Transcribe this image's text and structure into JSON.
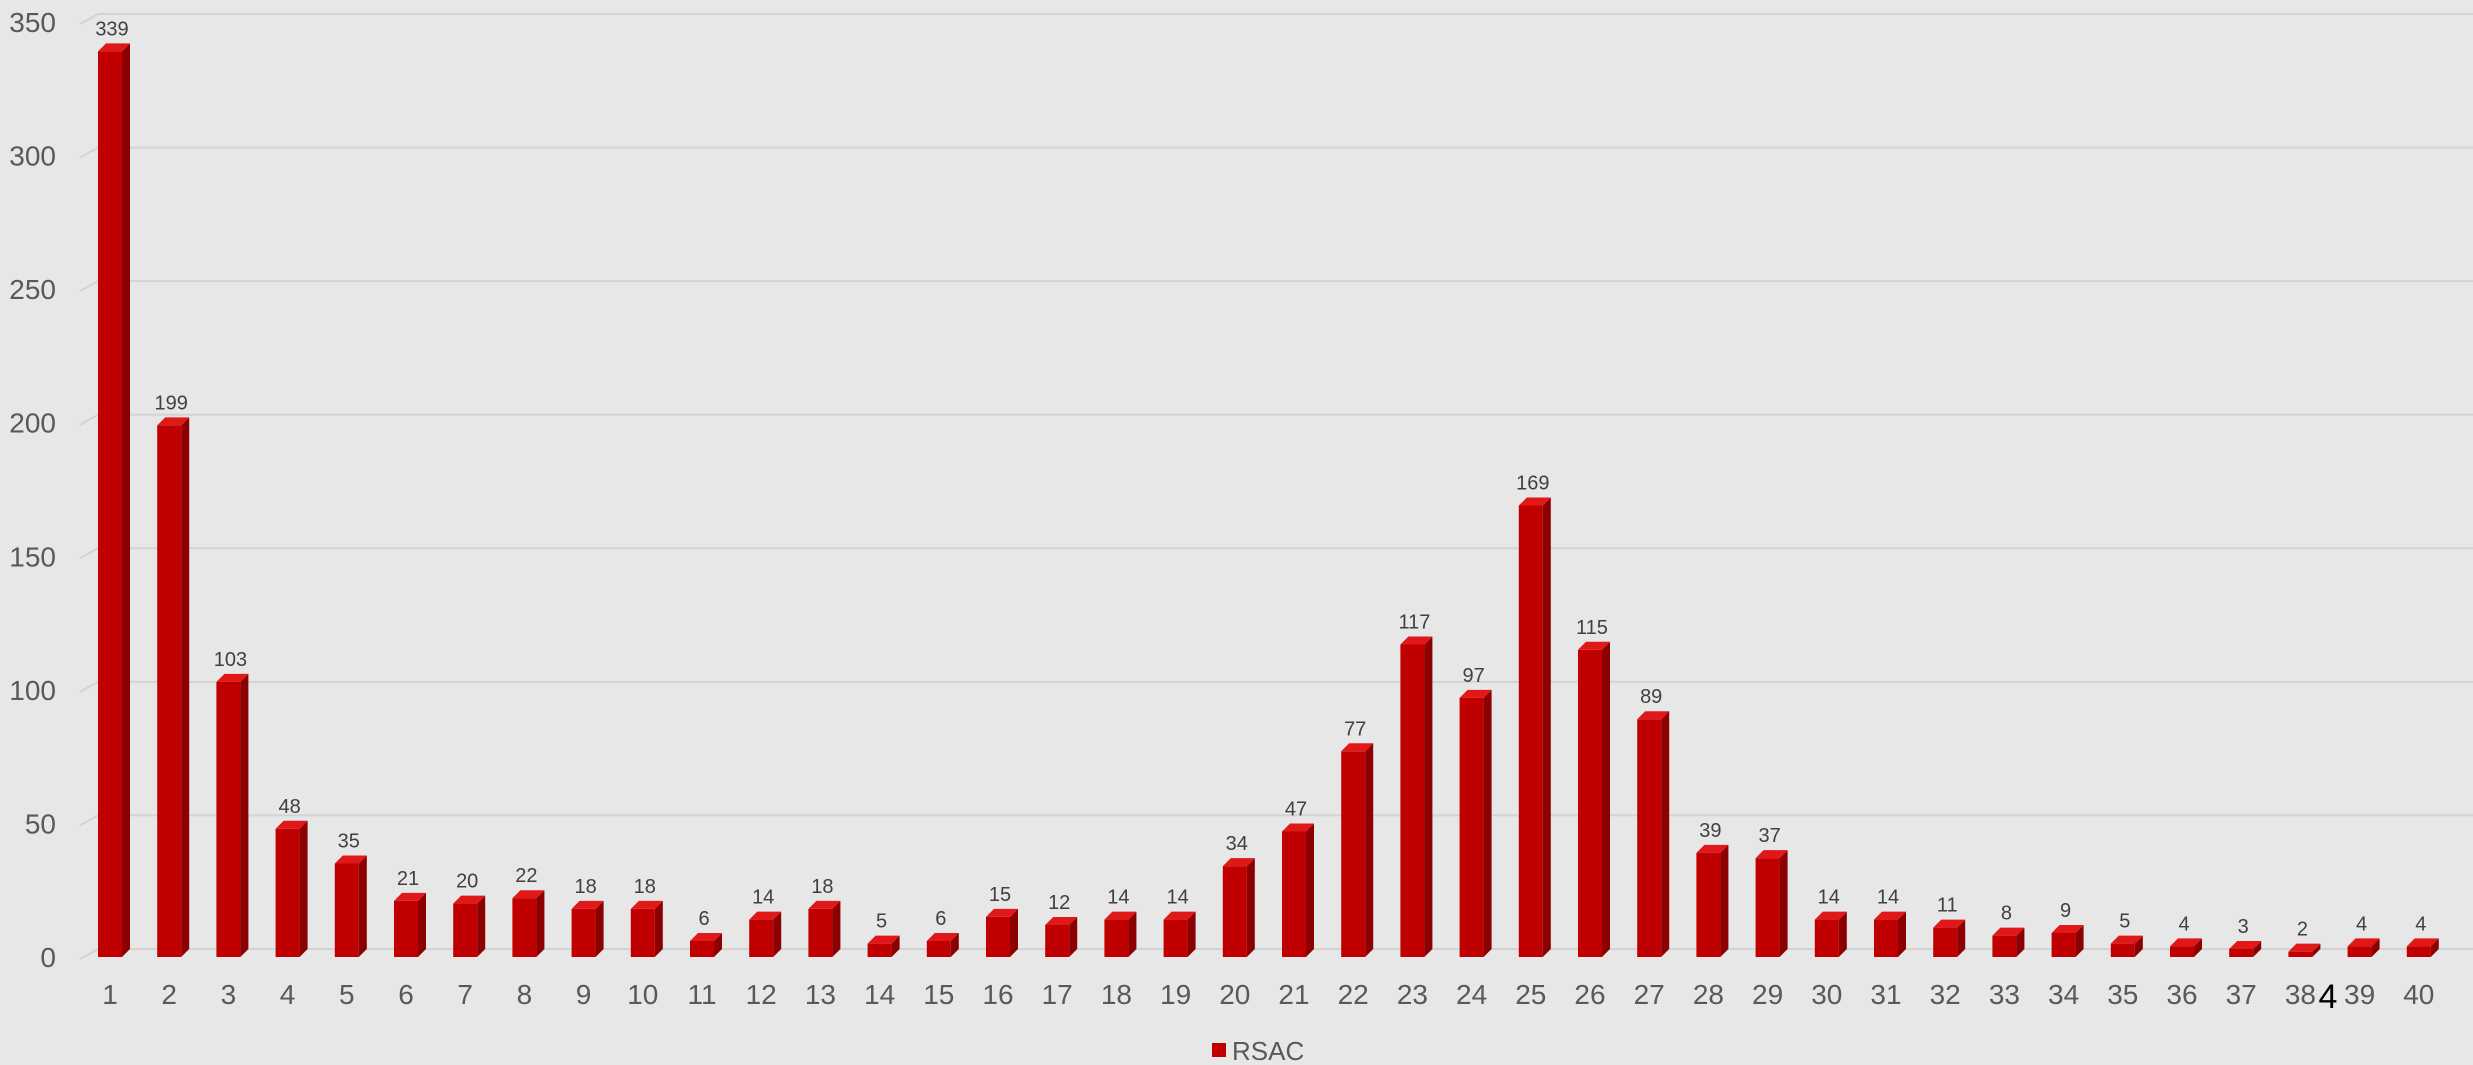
{
  "chart_data": {
    "type": "bar",
    "style": "3d-column",
    "categories": [
      "1",
      "2",
      "3",
      "4",
      "5",
      "6",
      "7",
      "8",
      "9",
      "10",
      "11",
      "12",
      "13",
      "14",
      "15",
      "16",
      "17",
      "18",
      "19",
      "20",
      "21",
      "22",
      "23",
      "24",
      "25",
      "26",
      "27",
      "28",
      "29",
      "30",
      "31",
      "32",
      "33",
      "34",
      "35",
      "36",
      "37",
      "38",
      "39",
      "40"
    ],
    "series": [
      {
        "name": "RSAC",
        "color": "#c00000",
        "values": [
          339,
          199,
          103,
          48,
          35,
          21,
          20,
          22,
          18,
          18,
          6,
          14,
          18,
          5,
          6,
          15,
          12,
          14,
          14,
          34,
          47,
          77,
          117,
          97,
          169,
          115,
          89,
          39,
          37,
          14,
          14,
          11,
          8,
          9,
          5,
          4,
          3,
          2,
          4,
          4
        ]
      }
    ],
    "data_labels": true,
    "y_ticks": [
      "0",
      "50",
      "100",
      "150",
      "200",
      "250",
      "300",
      "350"
    ],
    "ylim": [
      0,
      350
    ],
    "grid": true,
    "legend_position": "bottom",
    "stray_annotation": "4",
    "background": "#e7e7e7"
  }
}
